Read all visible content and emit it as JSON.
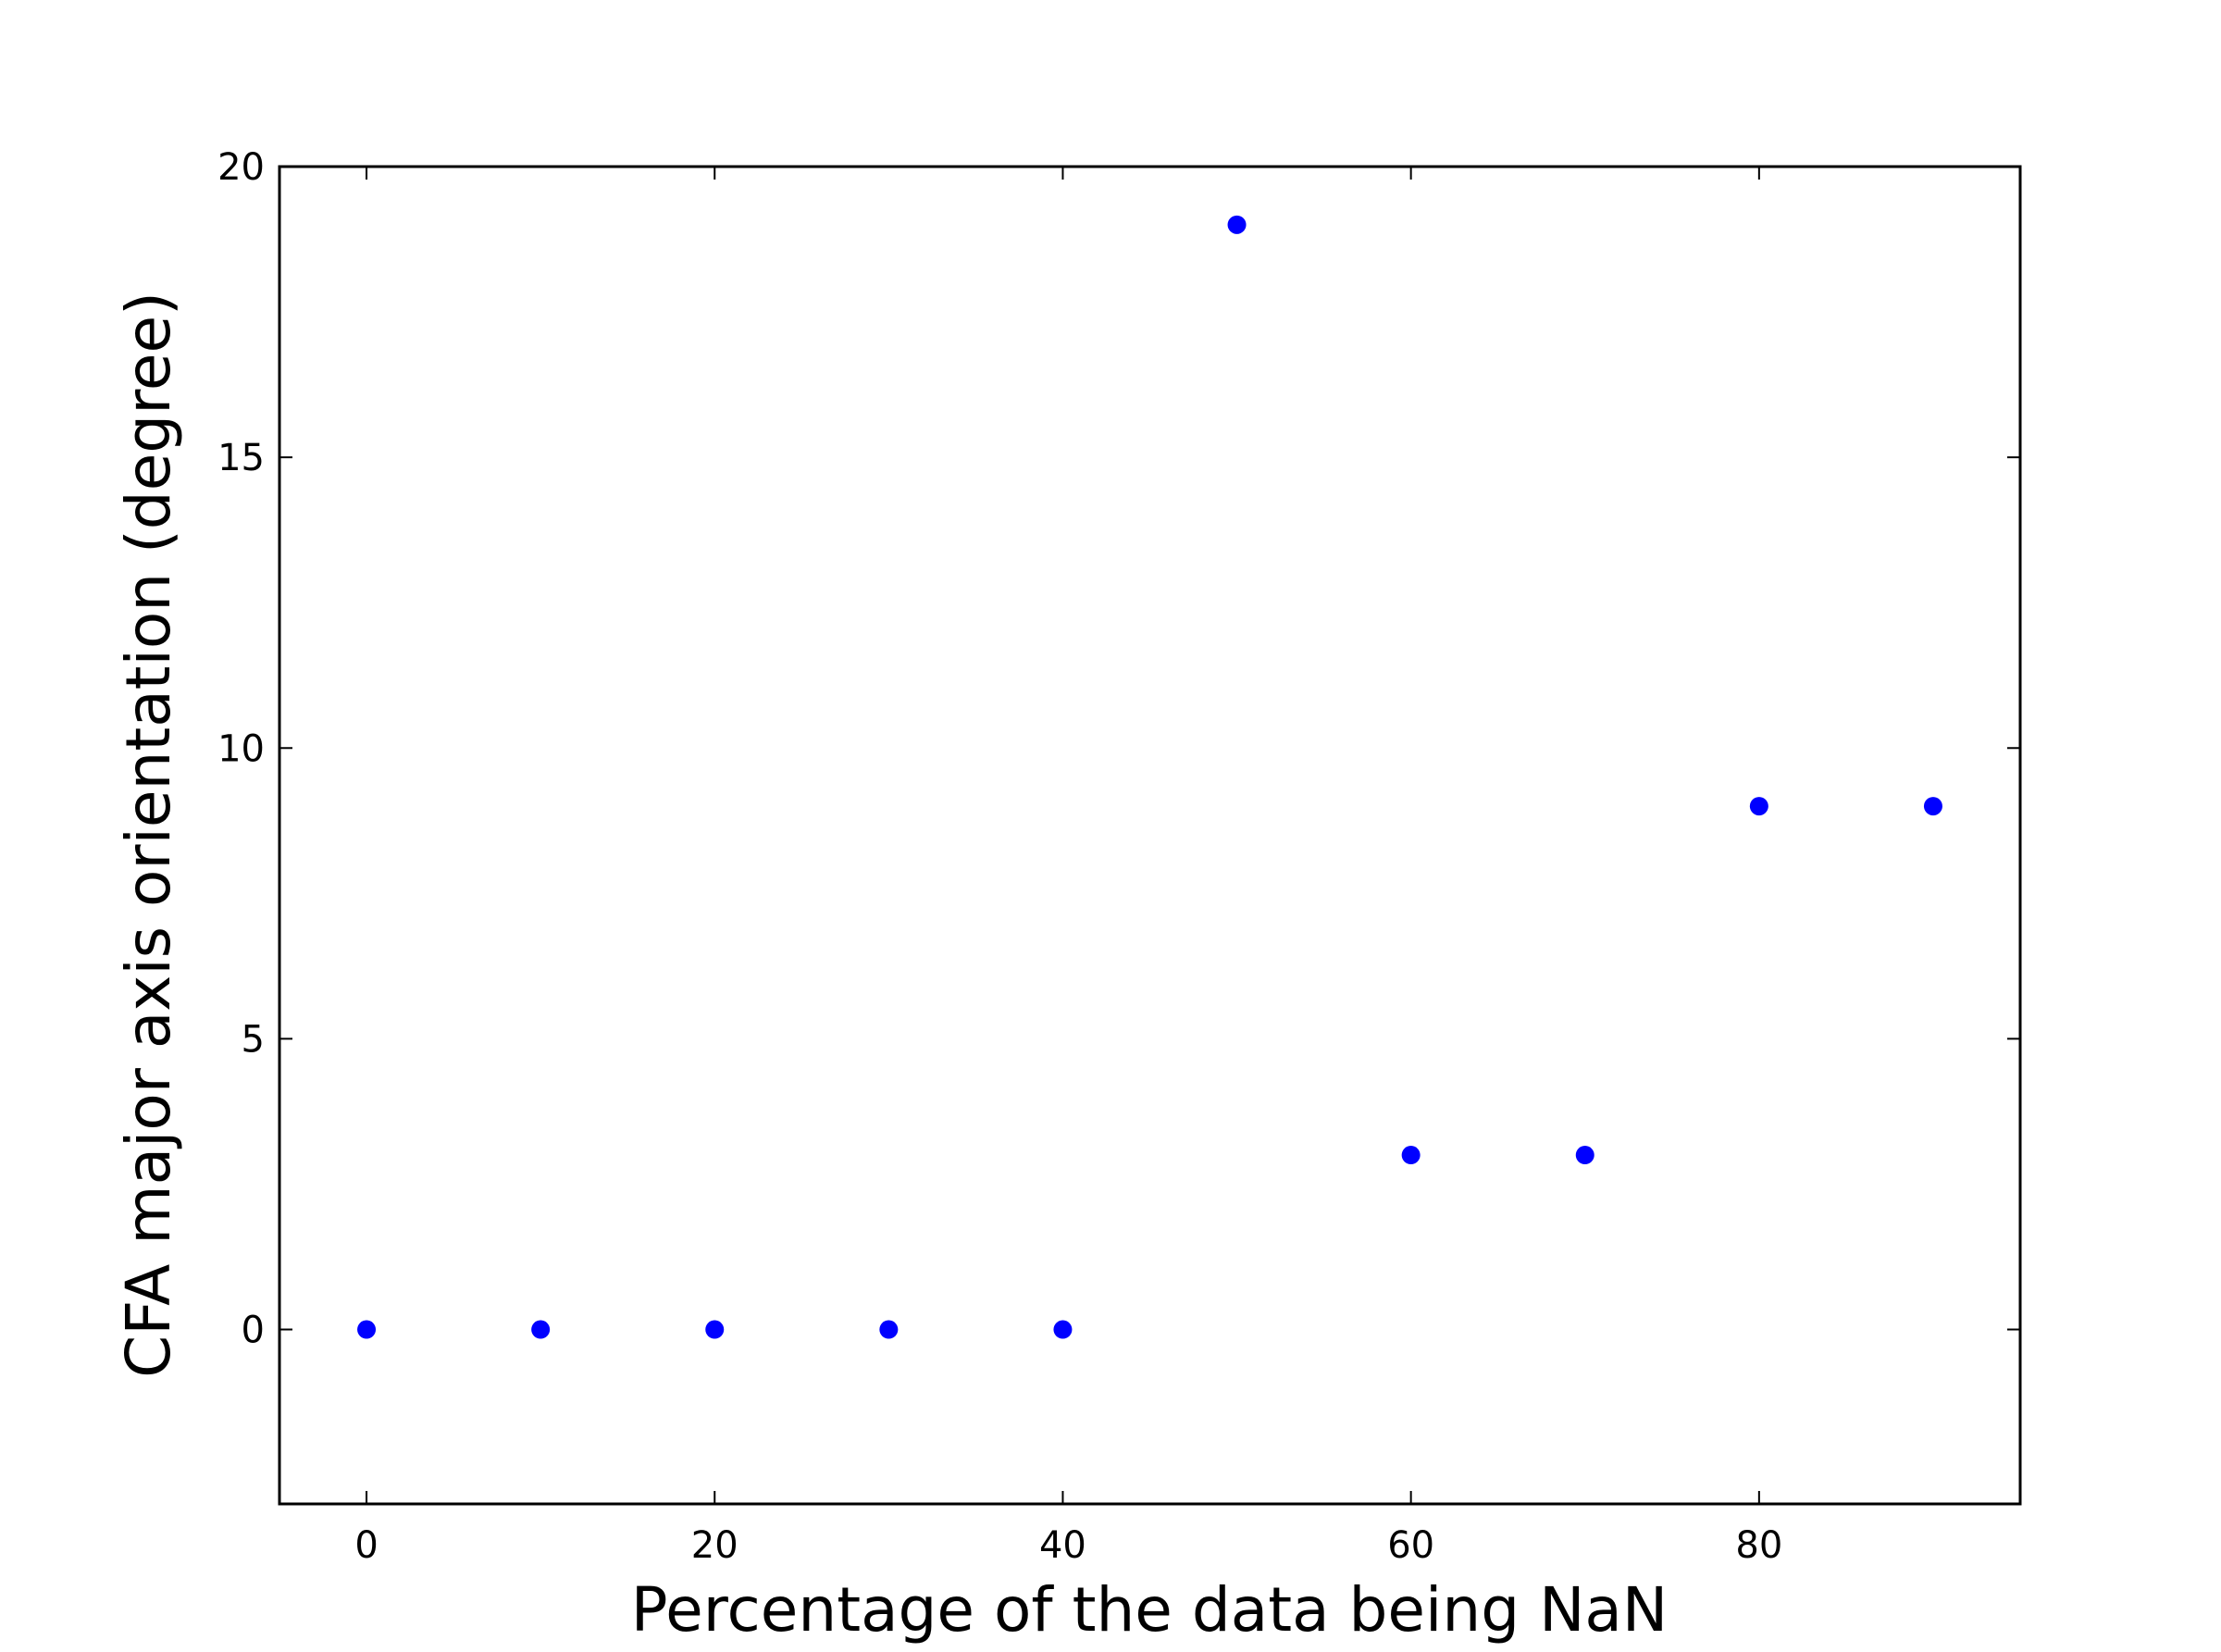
{
  "chart_data": {
    "type": "scatter",
    "xlabel": "Percentage of the data being NaN",
    "ylabel": "CFA major axis orientation (degree)",
    "xlim": [
      -5,
      95
    ],
    "ylim": [
      -3,
      20
    ],
    "xticks": [
      0,
      20,
      40,
      60,
      80
    ],
    "yticks": [
      0,
      5,
      10,
      15,
      20
    ],
    "grid": false,
    "marker_color": "#0000ff",
    "series": [
      {
        "x": [
          0,
          10,
          20,
          30,
          40,
          50,
          60,
          70,
          80,
          90
        ],
        "y": [
          0,
          0,
          0,
          0,
          0,
          19,
          3,
          3,
          9,
          9
        ]
      }
    ]
  }
}
